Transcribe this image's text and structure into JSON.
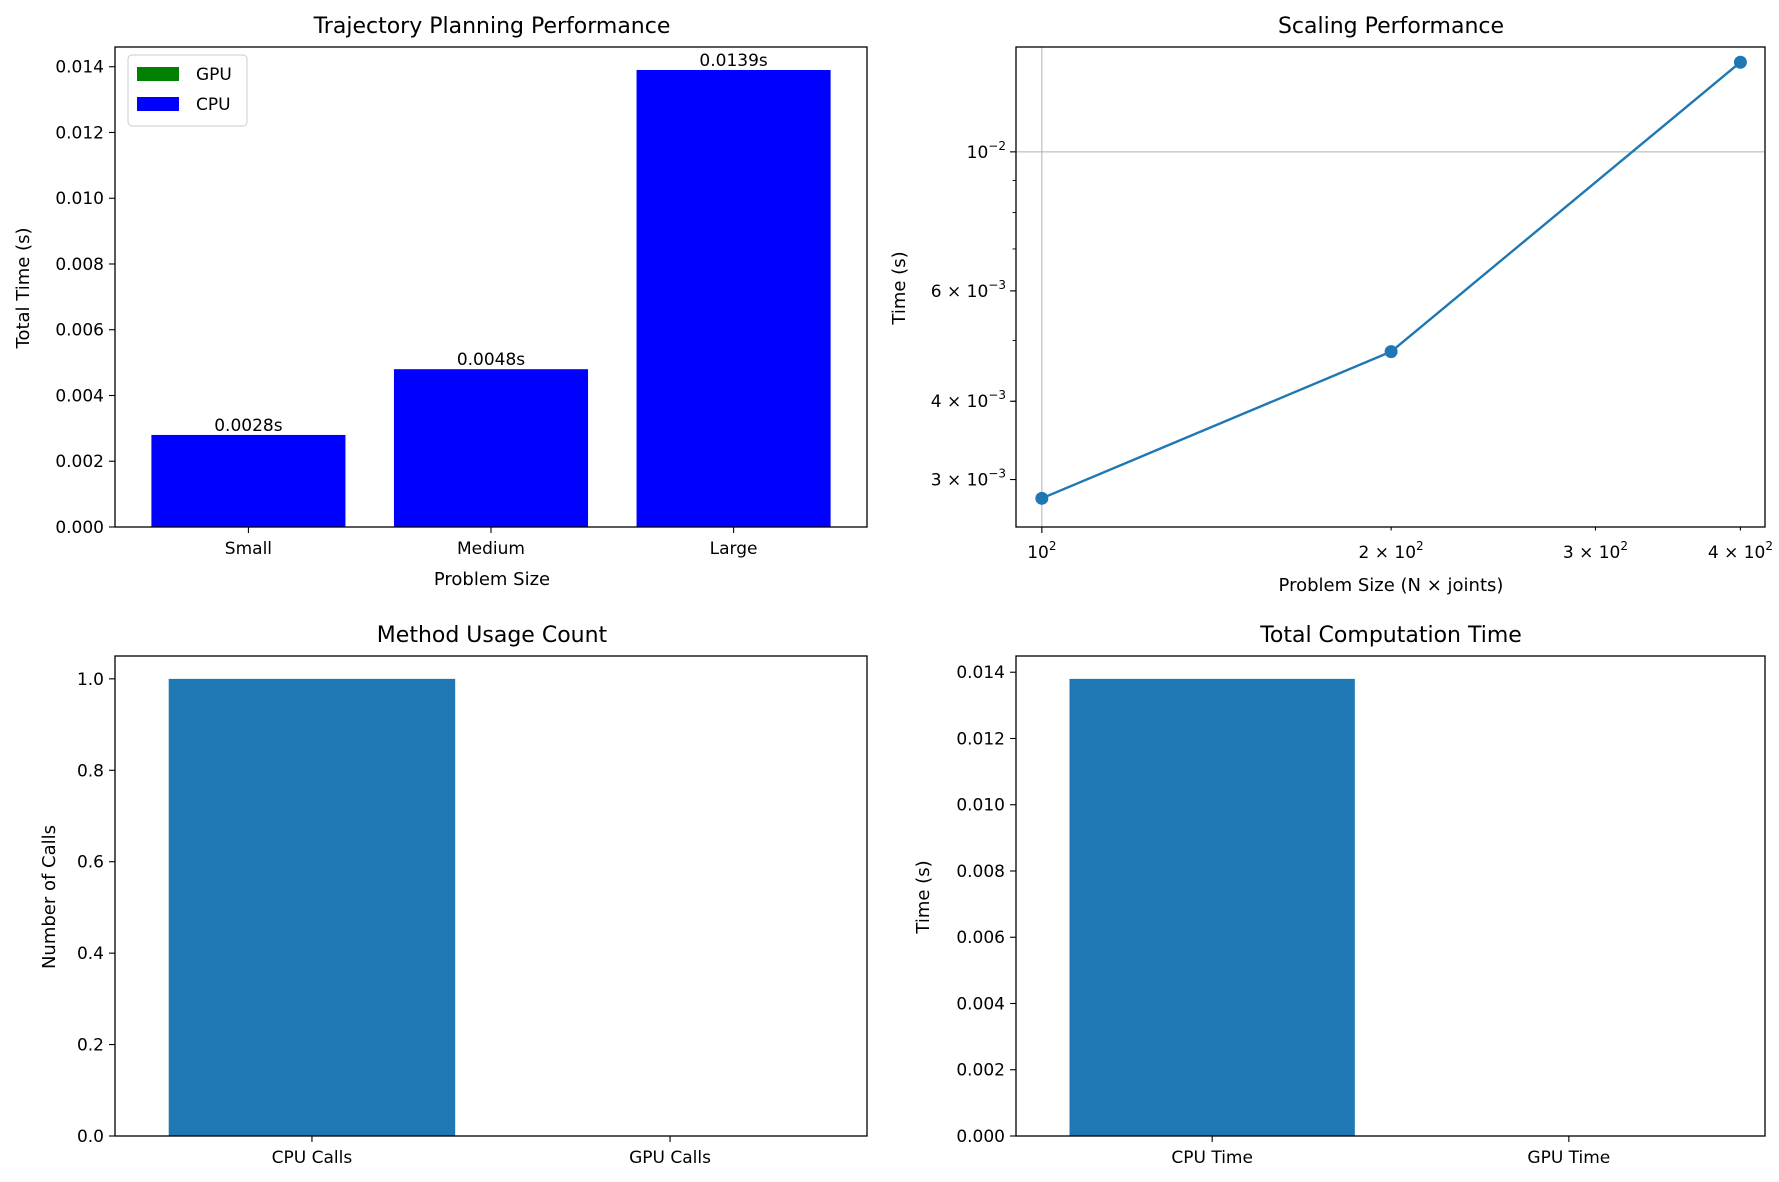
{
  "chart_data": [
    {
      "id": "trajectory",
      "type": "bar",
      "title": "Trajectory Planning Performance",
      "xlabel": "Problem Size",
      "ylabel": "Total Time (s)",
      "categories": [
        "Small",
        "Medium",
        "Large"
      ],
      "series": [
        {
          "name": "GPU",
          "color": "#008000",
          "values": [
            0,
            0,
            0
          ]
        },
        {
          "name": "CPU",
          "color": "#0000ff",
          "values": [
            0.0028,
            0.0048,
            0.0139
          ]
        }
      ],
      "data_labels": [
        "0.0028s",
        "0.0048s",
        "0.0139s"
      ],
      "ylim": [
        0,
        0.0146
      ],
      "yticks": [
        0.0,
        0.002,
        0.004,
        0.006,
        0.008,
        0.01,
        0.012,
        0.014
      ],
      "ytick_labels": [
        "0.000",
        "0.002",
        "0.004",
        "0.006",
        "0.008",
        "0.010",
        "0.012",
        "0.014"
      ],
      "legend": "top-left",
      "grid": false
    },
    {
      "id": "scaling",
      "type": "line",
      "title": "Scaling Performance",
      "xlabel": "Problem Size (N × joints)",
      "ylabel": "Time (s)",
      "xscale": "log",
      "yscale": "log",
      "x": [
        100,
        200,
        400
      ],
      "y": [
        0.0028,
        0.0048,
        0.0139
      ],
      "color": "#1f77b4",
      "xlim": [
        95,
        420
      ],
      "ylim": [
        0.00252,
        0.0147
      ],
      "xticks": [
        {
          "value": 100,
          "mant": "",
          "exp": "2"
        },
        {
          "value": 200,
          "mant": "2 × ",
          "exp": "2"
        },
        {
          "value": 300,
          "mant": "3 × ",
          "exp": "2"
        },
        {
          "value": 400,
          "mant": "4 × ",
          "exp": "2"
        }
      ],
      "yticks": [
        {
          "value": 0.003,
          "mant": "3 × ",
          "exp": "−3"
        },
        {
          "value": 0.004,
          "mant": "4 × ",
          "exp": "−3"
        },
        {
          "value": 0.006,
          "mant": "6 × ",
          "exp": "−3"
        },
        {
          "value": 0.01,
          "mant": "",
          "exp": "−2"
        }
      ],
      "grid": true
    },
    {
      "id": "usage",
      "type": "bar",
      "title": "Method Usage Count",
      "xlabel": "",
      "ylabel": "Number of Calls",
      "categories": [
        "CPU Calls",
        "GPU Calls"
      ],
      "values": [
        1,
        0
      ],
      "color": "#1f77b4",
      "ylim": [
        0,
        1.05
      ],
      "yticks": [
        0.0,
        0.2,
        0.4,
        0.6,
        0.8,
        1.0
      ],
      "ytick_labels": [
        "0.0",
        "0.2",
        "0.4",
        "0.6",
        "0.8",
        "1.0"
      ],
      "grid": false
    },
    {
      "id": "comptime",
      "type": "bar",
      "title": "Total Computation Time",
      "xlabel": "",
      "ylabel": "Time (s)",
      "categories": [
        "CPU Time",
        "GPU Time"
      ],
      "values": [
        0.0138,
        0
      ],
      "color": "#1f77b4",
      "ylim": [
        0,
        0.01449
      ],
      "yticks": [
        0.0,
        0.002,
        0.004,
        0.006,
        0.008,
        0.01,
        0.012,
        0.014
      ],
      "ytick_labels": [
        "0.000",
        "0.002",
        "0.004",
        "0.006",
        "0.008",
        "0.010",
        "0.012",
        "0.014"
      ],
      "grid": false
    }
  ]
}
